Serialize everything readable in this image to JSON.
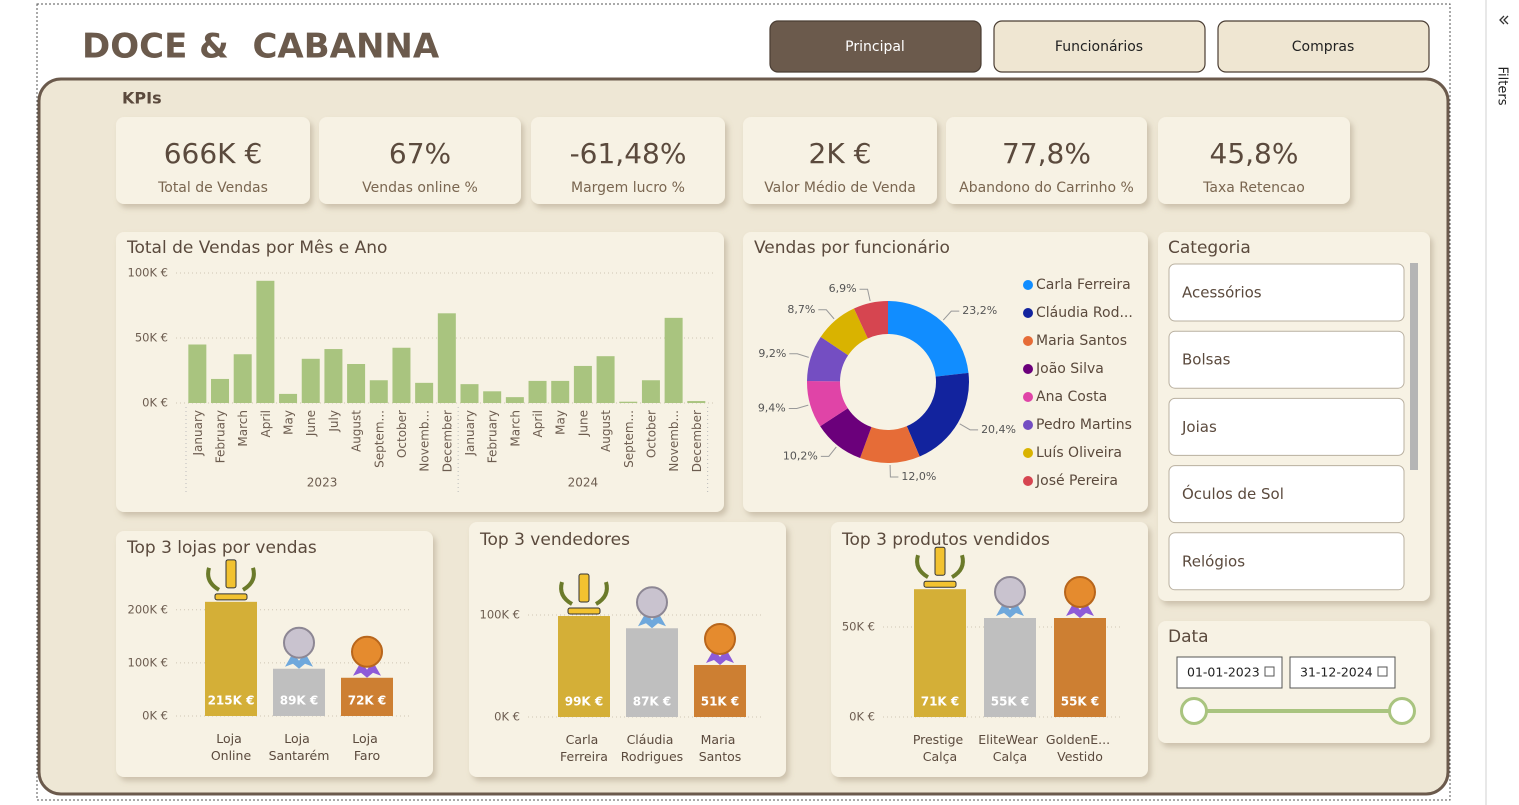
{
  "header": {
    "title": "DOCE &  CABANNA"
  },
  "nav": [
    {
      "label": "Principal",
      "active": true
    },
    {
      "label": "Funcionários",
      "active": false
    },
    {
      "label": "Compras",
      "active": false
    }
  ],
  "kpi_section": "KPIs",
  "kpis": [
    {
      "value": "666K €",
      "label": "Total de Vendas"
    },
    {
      "value": "67%",
      "label": "Vendas online %"
    },
    {
      "value": "-61,48%",
      "label": "Margem lucro %"
    },
    {
      "value": "2K €",
      "label": "Valor Médio de Venda"
    },
    {
      "value": "77,8%",
      "label": "Abandono do Carrinho %"
    },
    {
      "value": "45,8%",
      "label": "Taxa Retencao"
    }
  ],
  "chart_data": [
    {
      "type": "bar",
      "title": "Total de Vendas por Mês e Ano",
      "color": "#A9C47F",
      "groups": [
        {
          "label": "2023",
          "categories": [
            "January",
            "February",
            "March",
            "April",
            "May",
            "June",
            "July",
            "August",
            "Septem...",
            "October",
            "Novemb...",
            "December"
          ],
          "values": [
            45000,
            18500,
            37500,
            94000,
            7000,
            34000,
            41500,
            30000,
            17500,
            42500,
            15500,
            69000
          ]
        },
        {
          "label": "2024",
          "categories": [
            "January",
            "February",
            "March",
            "April",
            "May",
            "June",
            "August",
            "Septem...",
            "October",
            "Novemb...",
            "December"
          ],
          "values": [
            14500,
            9000,
            4500,
            17000,
            17000,
            28500,
            36000,
            1000,
            17500,
            65500,
            1500
          ]
        }
      ],
      "ylim": [
        0,
        100000
      ],
      "yticks": [
        {
          "value": 0,
          "label": "0K €"
        },
        {
          "value": 50000,
          "label": "50K €"
        },
        {
          "value": 100000,
          "label": "100K €"
        }
      ],
      "grid": true
    },
    {
      "type": "donut",
      "title": "Vendas por funcionário",
      "categories": [
        "Carla Ferreira",
        "Cláudia Rod...",
        "Maria Santos",
        "João Silva",
        "Ana Costa",
        "Pedro Martins",
        "Luís Oliveira",
        "José Pereira"
      ],
      "values": [
        23.2,
        20.4,
        12.0,
        10.2,
        9.4,
        9.2,
        8.7,
        6.9
      ],
      "value_labels": [
        "23,2%",
        "20,4%",
        "12,0%",
        "10,2%",
        "9,4%",
        "9,2%",
        "8,7%",
        "6,9%"
      ],
      "colors": [
        "#118DFF",
        "#12239E",
        "#E66C37",
        "#6B007B",
        "#E044A7",
        "#744EC2",
        "#D9B300",
        "#D64550"
      ],
      "legend": "right"
    },
    {
      "type": "bar",
      "title": "Top 3 lojas por vendas",
      "categories": [
        "Loja Online",
        "Loja Santarém",
        "Loja Faro"
      ],
      "values": [
        215000,
        89000,
        72000
      ],
      "value_labels": [
        "215K €",
        "89K €",
        "72K €"
      ],
      "colors": [
        "#D4AF37",
        "#BFBFBF",
        "#CD7F32"
      ],
      "ylim": [
        0,
        290000
      ],
      "yticks": [
        {
          "value": 0,
          "label": "0K €"
        },
        {
          "value": 100000,
          "label": "100K €"
        },
        {
          "value": 200000,
          "label": "200K €"
        }
      ],
      "grid": true
    },
    {
      "type": "bar",
      "title": "Top 3 vendedores",
      "categories": [
        "Carla Ferreira",
        "Cláudia Rodrigues",
        "Maria Santos"
      ],
      "values": [
        99000,
        87000,
        51000
      ],
      "value_labels": [
        "99K €",
        "87K €",
        "51K €"
      ],
      "colors": [
        "#D4AF37",
        "#BFBFBF",
        "#CD7F32"
      ],
      "ylim": [
        0,
        150000
      ],
      "yticks": [
        {
          "value": 0,
          "label": "0K €"
        },
        {
          "value": 100000,
          "label": "100K €"
        }
      ],
      "grid": true
    },
    {
      "type": "bar",
      "title": "Top 3 produtos vendidos",
      "categories": [
        "Prestige Calça",
        "EliteWear Calça",
        "GoldenE... Vestido"
      ],
      "values": [
        71000,
        55000,
        55000
      ],
      "value_labels": [
        "71K €",
        "55K €",
        "55K €"
      ],
      "colors": [
        "#D4AF37",
        "#BFBFBF",
        "#CD7F32"
      ],
      "ylim": [
        0,
        85000
      ],
      "yticks": [
        {
          "value": 0,
          "label": "0K €"
        },
        {
          "value": 50000,
          "label": "50K €"
        }
      ],
      "grid": true
    }
  ],
  "category_slicer": {
    "title": "Categoria",
    "items": [
      "Acessórios",
      "Bolsas",
      "Joias",
      "Óculos de Sol",
      "Relógios"
    ]
  },
  "date_slicer": {
    "title": "Data",
    "start": "01-01-2023",
    "end": "31-12-2024"
  },
  "filters_pane": "Filters"
}
